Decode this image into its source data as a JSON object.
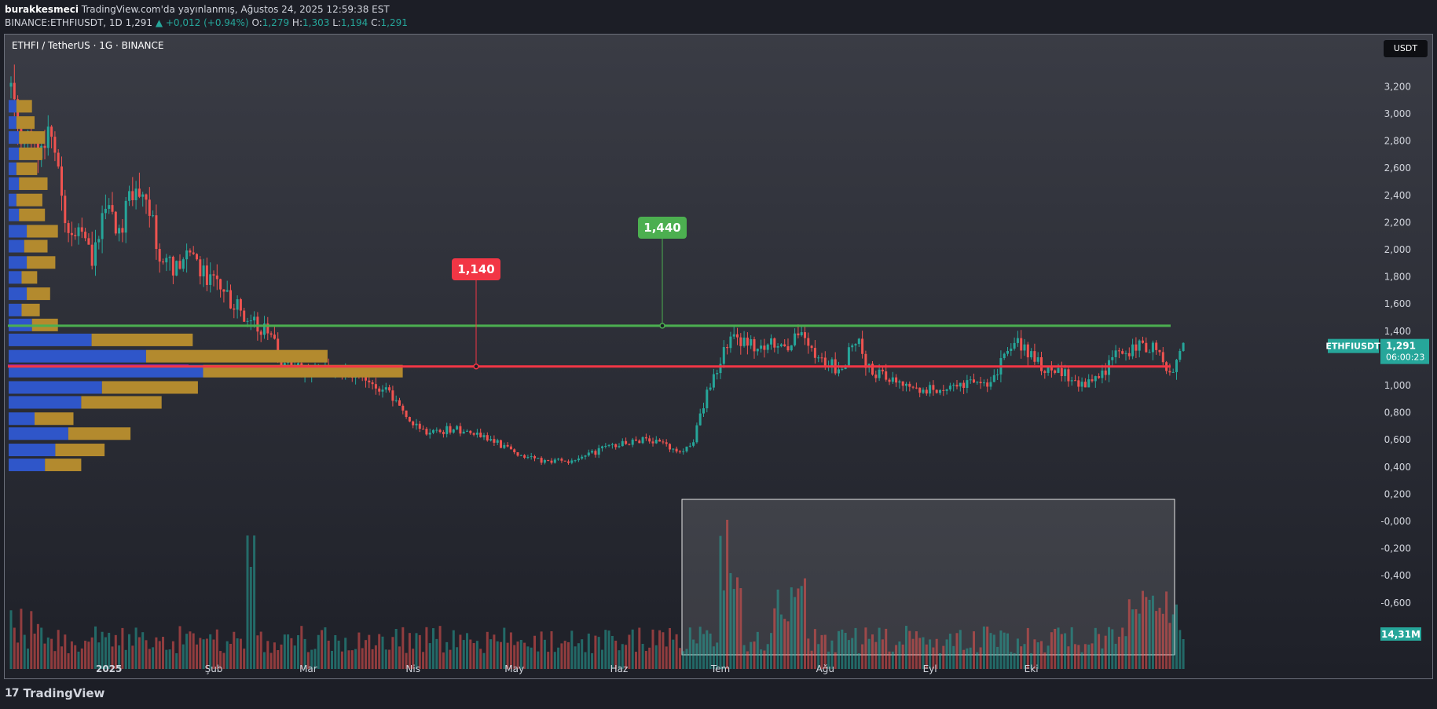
{
  "header": {
    "publisher_user": "burakkesmeci",
    "publisher_text": "TradingView.com'da yayınlanmış, Ağustos 24, 2025 12:59:38 EST",
    "symbol_line": "BINANCE:ETHFIUSDT, 1D",
    "last": "1,291",
    "change": "▲ +0,012 (+0.94%)",
    "o_label": "O:",
    "o_value": "1,279",
    "h_label": "H:",
    "h_value": "1,303",
    "l_label": "L:",
    "l_value": "1,194",
    "c_label": "C:",
    "c_value": "1,291"
  },
  "legend": {
    "title": "ETHFI / TetherUS · 1G · BINANCE"
  },
  "currency_chip": "USDT",
  "footer": {
    "brand": "TradingView",
    "logo_glyph": "17"
  },
  "colors": {
    "up": "#26a69a",
    "down": "#ef5350",
    "support": "#f23645",
    "resistance": "#4caf50",
    "vp_blue": "#2f56c9",
    "vp_gold": "#b38a2e"
  },
  "chart_data": {
    "type": "candlestick",
    "symbol": "ETHFIUSDT",
    "ylim": [
      -0.8,
      3.5
    ],
    "y_ticks": [
      "3,200",
      "3,000",
      "2,800",
      "2,600",
      "2,400",
      "2,200",
      "2,000",
      "1,800",
      "1,600",
      "1,400",
      "1,200",
      "1,000",
      "0,800",
      "0,600",
      "0,400",
      "0,200",
      "-0,000",
      "-0,200",
      "-0,400",
      "-0,600"
    ],
    "x_ticks": [
      "2025",
      "Şub",
      "Mar",
      "Nis",
      "May",
      "Haz",
      "Tem",
      "Ağu",
      "Eyl",
      "Eki"
    ],
    "last_price_label": "ETHFIUSDT",
    "last_price": "1,291",
    "countdown": "06:00:23",
    "volume_label": "14,31M",
    "annotations": [
      {
        "label": "1,140",
        "price": 1.14,
        "color": "support"
      },
      {
        "label": "1,440",
        "price": 1.44,
        "color": "resistance"
      }
    ],
    "path": [
      [
        0,
        3.2
      ],
      [
        4,
        2.8
      ],
      [
        8,
        2.7
      ],
      [
        12,
        2.9
      ],
      [
        16,
        2.2
      ],
      [
        20,
        2.1
      ],
      [
        24,
        1.95
      ],
      [
        28,
        2.3
      ],
      [
        32,
        2.1
      ],
      [
        36,
        2.45
      ],
      [
        40,
        2.35
      ],
      [
        44,
        2.0
      ],
      [
        48,
        1.85
      ],
      [
        52,
        2.0
      ],
      [
        56,
        1.85
      ],
      [
        60,
        1.75
      ],
      [
        64,
        1.65
      ],
      [
        68,
        1.55
      ],
      [
        72,
        1.45
      ],
      [
        76,
        1.42
      ],
      [
        80,
        1.18
      ],
      [
        84,
        1.12
      ],
      [
        88,
        1.1
      ],
      [
        92,
        1.15
      ],
      [
        96,
        1.12
      ],
      [
        100,
        1.1
      ],
      [
        104,
        1.13
      ],
      [
        106,
        1.0
      ],
      [
        110,
        0.98
      ],
      [
        114,
        0.88
      ],
      [
        118,
        0.75
      ],
      [
        122,
        0.67
      ],
      [
        126,
        0.66
      ],
      [
        130,
        0.68
      ],
      [
        134,
        0.67
      ],
      [
        138,
        0.64
      ],
      [
        142,
        0.6
      ],
      [
        146,
        0.55
      ],
      [
        150,
        0.5
      ],
      [
        154,
        0.47
      ],
      [
        158,
        0.44
      ],
      [
        162,
        0.45
      ],
      [
        166,
        0.44
      ],
      [
        170,
        0.48
      ],
      [
        174,
        0.52
      ],
      [
        178,
        0.56
      ],
      [
        182,
        0.58
      ],
      [
        186,
        0.6
      ],
      [
        190,
        0.59
      ],
      [
        194,
        0.56
      ],
      [
        198,
        0.52
      ],
      [
        202,
        0.6
      ],
      [
        206,
        0.95
      ],
      [
        210,
        1.2
      ],
      [
        214,
        1.35
      ],
      [
        218,
        1.3
      ],
      [
        222,
        1.25
      ],
      [
        226,
        1.32
      ],
      [
        230,
        1.3
      ],
      [
        234,
        1.35
      ],
      [
        238,
        1.2
      ],
      [
        242,
        1.15
      ],
      [
        246,
        1.12
      ],
      [
        250,
        1.35
      ],
      [
        254,
        1.12
      ],
      [
        258,
        1.08
      ],
      [
        262,
        1.05
      ],
      [
        266,
        1.0
      ],
      [
        270,
        0.95
      ],
      [
        274,
        0.98
      ],
      [
        278,
        1.0
      ],
      [
        282,
        1.0
      ],
      [
        286,
        1.0
      ],
      [
        290,
        1.05
      ],
      [
        294,
        1.2
      ],
      [
        298,
        1.32
      ],
      [
        302,
        1.2
      ],
      [
        306,
        1.12
      ],
      [
        310,
        1.1
      ],
      [
        314,
        1.05
      ],
      [
        318,
        1.0
      ],
      [
        322,
        1.05
      ],
      [
        326,
        1.2
      ],
      [
        330,
        1.25
      ],
      [
        334,
        1.3
      ],
      [
        338,
        1.28
      ],
      [
        342,
        1.15
      ],
      [
        344,
        1.1
      ],
      [
        347,
        1.3
      ]
    ],
    "hlines": [
      {
        "price": 1.44,
        "color": "resistance"
      },
      {
        "price": 1.14,
        "color": "support"
      }
    ],
    "volume_profile": [
      {
        "price": 3.05,
        "buy": 3,
        "sell": 6
      },
      {
        "price": 2.93,
        "buy": 3,
        "sell": 7
      },
      {
        "price": 2.82,
        "buy": 4,
        "sell": 10
      },
      {
        "price": 2.7,
        "buy": 4,
        "sell": 9
      },
      {
        "price": 2.59,
        "buy": 3,
        "sell": 8
      },
      {
        "price": 2.48,
        "buy": 4,
        "sell": 11
      },
      {
        "price": 2.36,
        "buy": 3,
        "sell": 10
      },
      {
        "price": 2.25,
        "buy": 4,
        "sell": 10
      },
      {
        "price": 2.13,
        "buy": 7,
        "sell": 12
      },
      {
        "price": 2.02,
        "buy": 6,
        "sell": 9
      },
      {
        "price": 1.9,
        "buy": 7,
        "sell": 11
      },
      {
        "price": 1.79,
        "buy": 5,
        "sell": 6
      },
      {
        "price": 1.67,
        "buy": 7,
        "sell": 9
      },
      {
        "price": 1.55,
        "buy": 5,
        "sell": 7
      },
      {
        "price": 1.44,
        "buy": 9,
        "sell": 10
      },
      {
        "price": 1.33,
        "buy": 32,
        "sell": 39
      },
      {
        "price": 1.21,
        "buy": 53,
        "sell": 70
      },
      {
        "price": 1.1,
        "buy": 75,
        "sell": 77
      },
      {
        "price": 0.98,
        "buy": 36,
        "sell": 37
      },
      {
        "price": 0.87,
        "buy": 28,
        "sell": 31
      },
      {
        "price": 0.75,
        "buy": 10,
        "sell": 15
      },
      {
        "price": 0.64,
        "buy": 23,
        "sell": 24
      },
      {
        "price": 0.52,
        "buy": 18,
        "sell": 19
      },
      {
        "price": 0.41,
        "buy": 14,
        "sell": 14
      }
    ]
  }
}
